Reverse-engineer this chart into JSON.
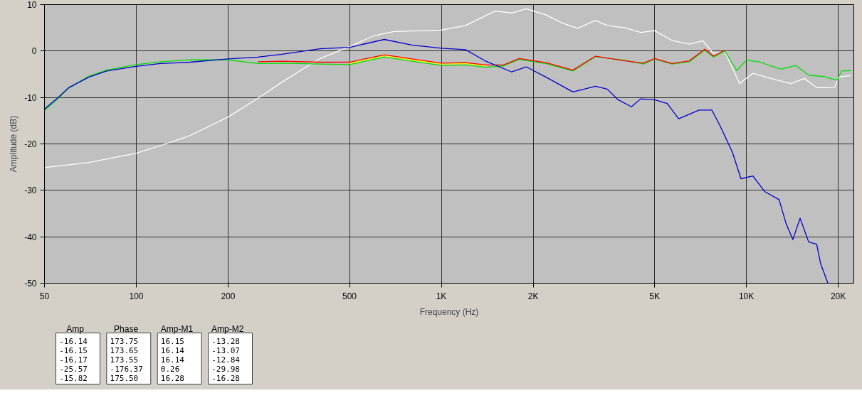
{
  "chart_data": {
    "type": "line",
    "xlabel": "Frequency (Hz)",
    "ylabel": "Amplitude (dB)",
    "log": "x",
    "grid": true,
    "marker": "none",
    "line_style": "solid",
    "xlim": [
      50,
      22500
    ],
    "ylim": [
      -50,
      10
    ],
    "xticks": [
      50,
      100,
      200,
      500,
      {
        "value": 1000,
        "label": "1K"
      },
      {
        "value": 2000,
        "label": "2K"
      },
      {
        "value": 5000,
        "label": "5K"
      },
      {
        "value": 10000,
        "label": "10K"
      },
      {
        "value": 20000,
        "label": "20K"
      }
    ],
    "yticks": [
      -50,
      -40,
      -30,
      -20,
      -10,
      0,
      10
    ],
    "series": [
      {
        "color": "#ffffff",
        "x": [
          50,
          70,
          100,
          125,
          150,
          200,
          250,
          300,
          400,
          500,
          600,
          700,
          1000,
          1200,
          1500,
          1700,
          1900,
          2200,
          2500,
          2800,
          3200,
          3500,
          4000,
          4500,
          5000,
          5700,
          6500,
          7200,
          7800,
          8500,
          9000,
          9500,
          10500,
          12000,
          14000,
          15500,
          17000,
          19500,
          20000,
          22000
        ],
        "values": [
          -25.1,
          -24,
          -22,
          -20,
          -18.2,
          -14.2,
          -10.2,
          -6.7,
          -1.6,
          0.9,
          3.3,
          4.2,
          4.5,
          5.5,
          8.6,
          8.2,
          9.1,
          7.8,
          6.0,
          4.9,
          6.6,
          5.5,
          5.0,
          4.0,
          4.4,
          2.3,
          1.5,
          2.2,
          -0.5,
          -0.2,
          -3.6,
          -7,
          -4.8,
          -5.9,
          -7,
          -5.9,
          -7.9,
          -7.8,
          -5.6,
          -5.3
        ]
      },
      {
        "color": "#00e000",
        "x": [
          50,
          55,
          60,
          70,
          80,
          100,
          120,
          150,
          200,
          250,
          300,
          400,
          500,
          650,
          800,
          1000,
          1200,
          1400,
          1600,
          1800,
          2200,
          2700,
          3200,
          4000,
          4600,
          5000,
          5700,
          6500,
          7300,
          7800,
          8500,
          9300,
          10000,
          11000,
          12000,
          13000,
          14500,
          16000,
          18000,
          19800,
          20500,
          22000
        ],
        "values": [
          -12.8,
          -10.4,
          -8,
          -5.4,
          -4.1,
          -2.9,
          -2.3,
          -1.9,
          -1.9,
          -2.7,
          -2.6,
          -2.8,
          -2.9,
          -1.3,
          -2.2,
          -3.1,
          -3.0,
          -3.5,
          -3.2,
          -1.8,
          -2.7,
          -4.3,
          -1.2,
          -2.0,
          -2.8,
          -1.7,
          -2.8,
          -2.3,
          0.2,
          -1.3,
          0,
          -4.2,
          -2.0,
          -2.3,
          -3.2,
          -3.9,
          -3.1,
          -5.2,
          -5.5,
          -6.3,
          -4.3,
          -4.2
        ]
      },
      {
        "color": "#ffff00",
        "x": [
          500,
          650,
          800,
          1000,
          1200,
          1400
        ],
        "values": [
          -2.7,
          -1.0,
          -1.9,
          -2.8,
          -2.7,
          -3.2
        ]
      },
      {
        "color": "#ff0000",
        "x": [
          250,
          300,
          400,
          500,
          650,
          800,
          1000,
          1200,
          1400,
          1600,
          1800,
          2200,
          2700,
          3200,
          4000,
          4600,
          5000,
          5700,
          6500,
          7300,
          7800,
          8500
        ],
        "values": [
          -2.3,
          -2.2,
          -2.4,
          -2.4,
          -0.8,
          -1.7,
          -2.6,
          -2.5,
          -3.0,
          -3.0,
          -1.6,
          -2.5,
          -4.1,
          -1.1,
          -2.1,
          -2.6,
          -1.6,
          -2.7,
          -2.1,
          0.4,
          -1.1,
          0.2
        ]
      },
      {
        "color": "#0000cc",
        "x": [
          50,
          55,
          60,
          70,
          80,
          100,
          120,
          150,
          200,
          250,
          300,
          400,
          500,
          650,
          800,
          1000,
          1200,
          1400,
          1700,
          1900,
          2200,
          2700,
          3200,
          3500,
          3800,
          4200,
          4500,
          5000,
          5500,
          6000,
          7000,
          7700,
          8200,
          9000,
          9600,
          10500,
          11500,
          12800,
          13500,
          14200,
          15000,
          16000,
          17000,
          17500,
          18500
        ],
        "values": [
          -12.5,
          -10.2,
          -7.9,
          -5.6,
          -4.3,
          -3.3,
          -2.7,
          -2.4,
          -1.7,
          -1.3,
          -0.7,
          0.5,
          0.8,
          2.5,
          1.3,
          0.6,
          0.3,
          -2.2,
          -4.5,
          -3.4,
          -5.6,
          -8.8,
          -7.6,
          -8.2,
          -10.5,
          -12,
          -10.3,
          -10.5,
          -11.3,
          -14.6,
          -12.7,
          -12.7,
          -16.1,
          -21.8,
          -27.5,
          -26.9,
          -30.3,
          -32,
          -37.2,
          -40.6,
          -36,
          -41.1,
          -41.6,
          -45.7,
          -50
        ]
      }
    ],
    "annotations": [
      "Amp",
      "-16.14",
      "-16.15",
      "-16.17",
      "-25.57",
      "-15.82",
      "Phase",
      "173.75",
      "173.65",
      "173.55",
      "-176.37",
      "175.50",
      "Amp-M1",
      "16.15",
      "16.14",
      "16.14",
      "0.26",
      "16.28",
      "Amp-M2",
      "-13.28",
      "-13.07",
      "-12.84",
      "-29.98",
      "-16.28"
    ]
  }
}
